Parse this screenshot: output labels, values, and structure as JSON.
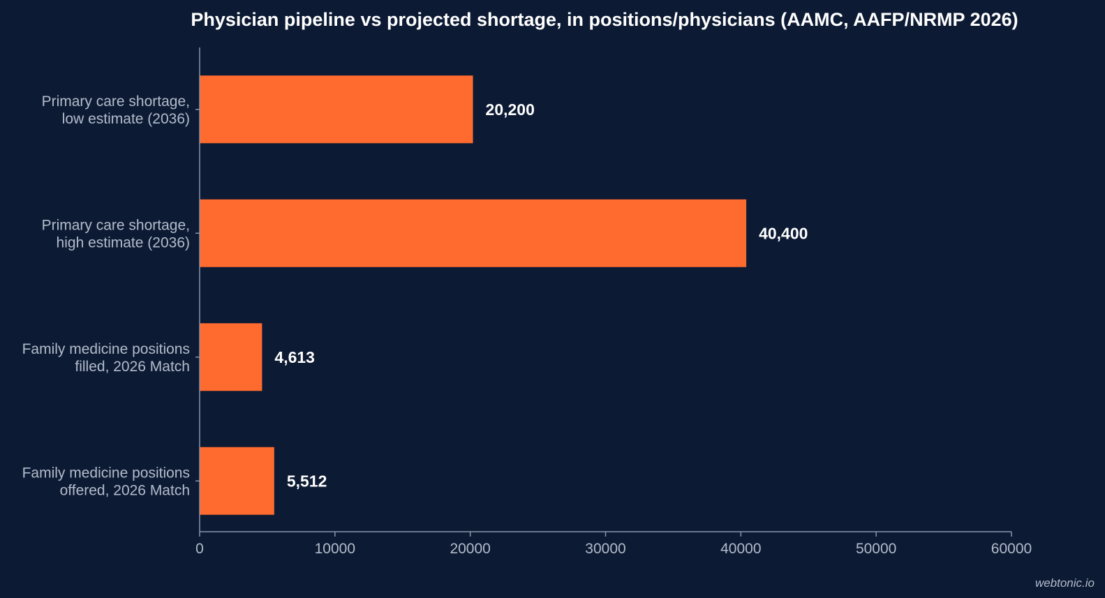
{
  "colors": {
    "background": "#0c1a33",
    "bar": "#ff6b2f",
    "title": "#ffffff",
    "axis": "#8a96ad",
    "category_label": "#b3bccb",
    "tick_label": "#b3bccb",
    "data_label": "#ffffff",
    "watermark": "#b3bccb"
  },
  "watermark": "webtonic.io",
  "chart_data": {
    "type": "bar",
    "orientation": "horizontal",
    "title": "Physician pipeline vs projected shortage, in positions/physicians (AAMC, AAFP/NRMP 2026)",
    "xlabel": "",
    "ylabel": "",
    "xlim": [
      0,
      60000
    ],
    "xticks": [
      "0",
      "10000",
      "20000",
      "30000",
      "40000",
      "50000",
      "60000"
    ],
    "grid": false,
    "legend": "none",
    "categories": [
      [
        "Primary care shortage,",
        "low estimate (2036)"
      ],
      [
        "Primary care shortage,",
        "high estimate (2036)"
      ],
      [
        "Family medicine positions",
        "filled, 2026 Match"
      ],
      [
        "Family medicine positions",
        "offered, 2026 Match"
      ]
    ],
    "values": [
      20200,
      40400,
      4613,
      5512
    ],
    "value_labels": [
      "20,200",
      "40,400",
      "4,613",
      "5,512"
    ]
  }
}
